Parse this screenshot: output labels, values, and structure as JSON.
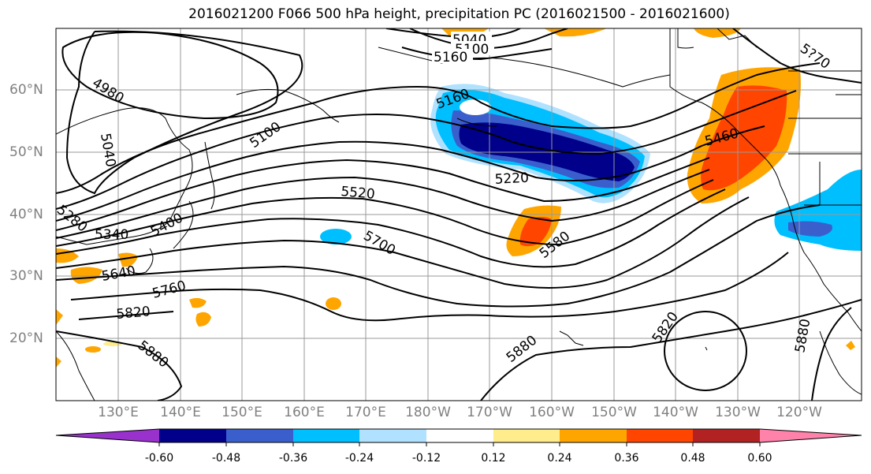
{
  "title": "2016021200 F066 500 hPa height, precipitation PC (2016021500 - 2016021600)",
  "lat_labels": [
    "60°N",
    "50°N",
    "40°N",
    "30°N",
    "20°N"
  ],
  "lon_labels": [
    "130°E",
    "140°E",
    "150°E",
    "160°E",
    "170°E",
    "180°W",
    "170°W",
    "160°W",
    "150°W",
    "140°W",
    "130°W",
    "120°W"
  ],
  "contour_labels": [
    "5040",
    "5100",
    "5160",
    "4980",
    "5040",
    "5100",
    "5160",
    "5220",
    "5520",
    "5280",
    "5340",
    "5400",
    "5700",
    "5580",
    "5640",
    "5760",
    "5820",
    "5880",
    "5880",
    "5820",
    "5880",
    "5460",
    "5?70"
  ],
  "colorbar": {
    "tick_labels": [
      "-0.60",
      "-0.48",
      "-0.36",
      "-0.24",
      "-0.12",
      "0.12",
      "0.24",
      "0.36",
      "0.48",
      "0.60"
    ],
    "colors": [
      "#9932cc",
      "#00008b",
      "#3a5fcd",
      "#00bfff",
      "#b0e2ff",
      "#ffffff",
      "#ffec8b",
      "#ffa500",
      "#ff4500",
      "#b22222",
      "#ff82ab"
    ]
  },
  "colors": {
    "neg_strong": "#00008b",
    "neg_mid": "#3a5fcd",
    "neg_light": "#00bfff",
    "pos_light": "#ffec8b",
    "pos_mid": "#ffa500",
    "pos_strong": "#ff4500"
  }
}
